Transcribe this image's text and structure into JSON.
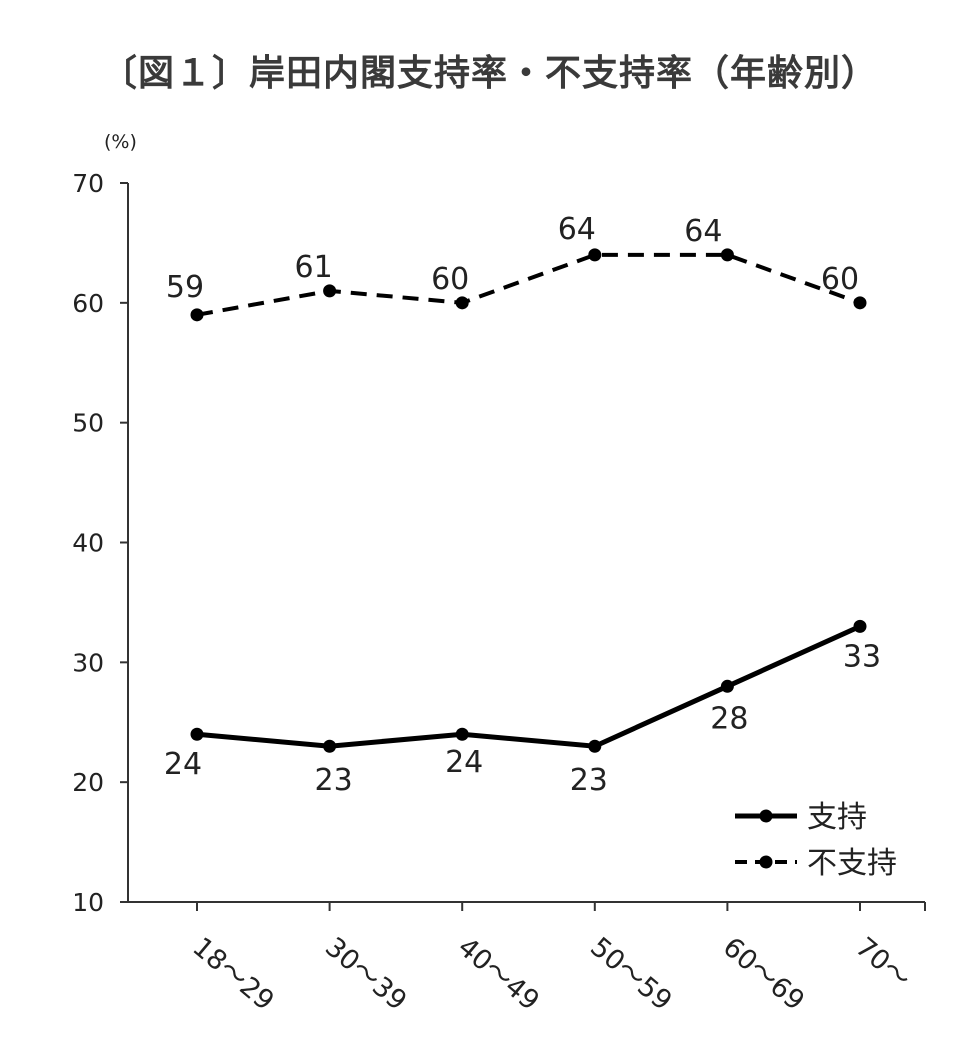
{
  "chart_data": {
    "type": "line",
    "title": "〔図１〕岸田内閣支持率・不支持率（年齢別）",
    "ylabel": "(%)",
    "xlabel": "",
    "ylim": [
      10,
      70
    ],
    "yticks": [
      10,
      20,
      30,
      40,
      50,
      60,
      70
    ],
    "categories": [
      "18～29",
      "30～39",
      "40～49",
      "50～59",
      "60～69",
      "70～"
    ],
    "series": [
      {
        "name": "支持",
        "style": "solid",
        "values": [
          24,
          23,
          24,
          23,
          28,
          33
        ]
      },
      {
        "name": "不支持",
        "style": "dashed",
        "values": [
          59,
          61,
          60,
          64,
          64,
          60
        ]
      }
    ],
    "legend_position": "bottom-right",
    "grid": false
  }
}
